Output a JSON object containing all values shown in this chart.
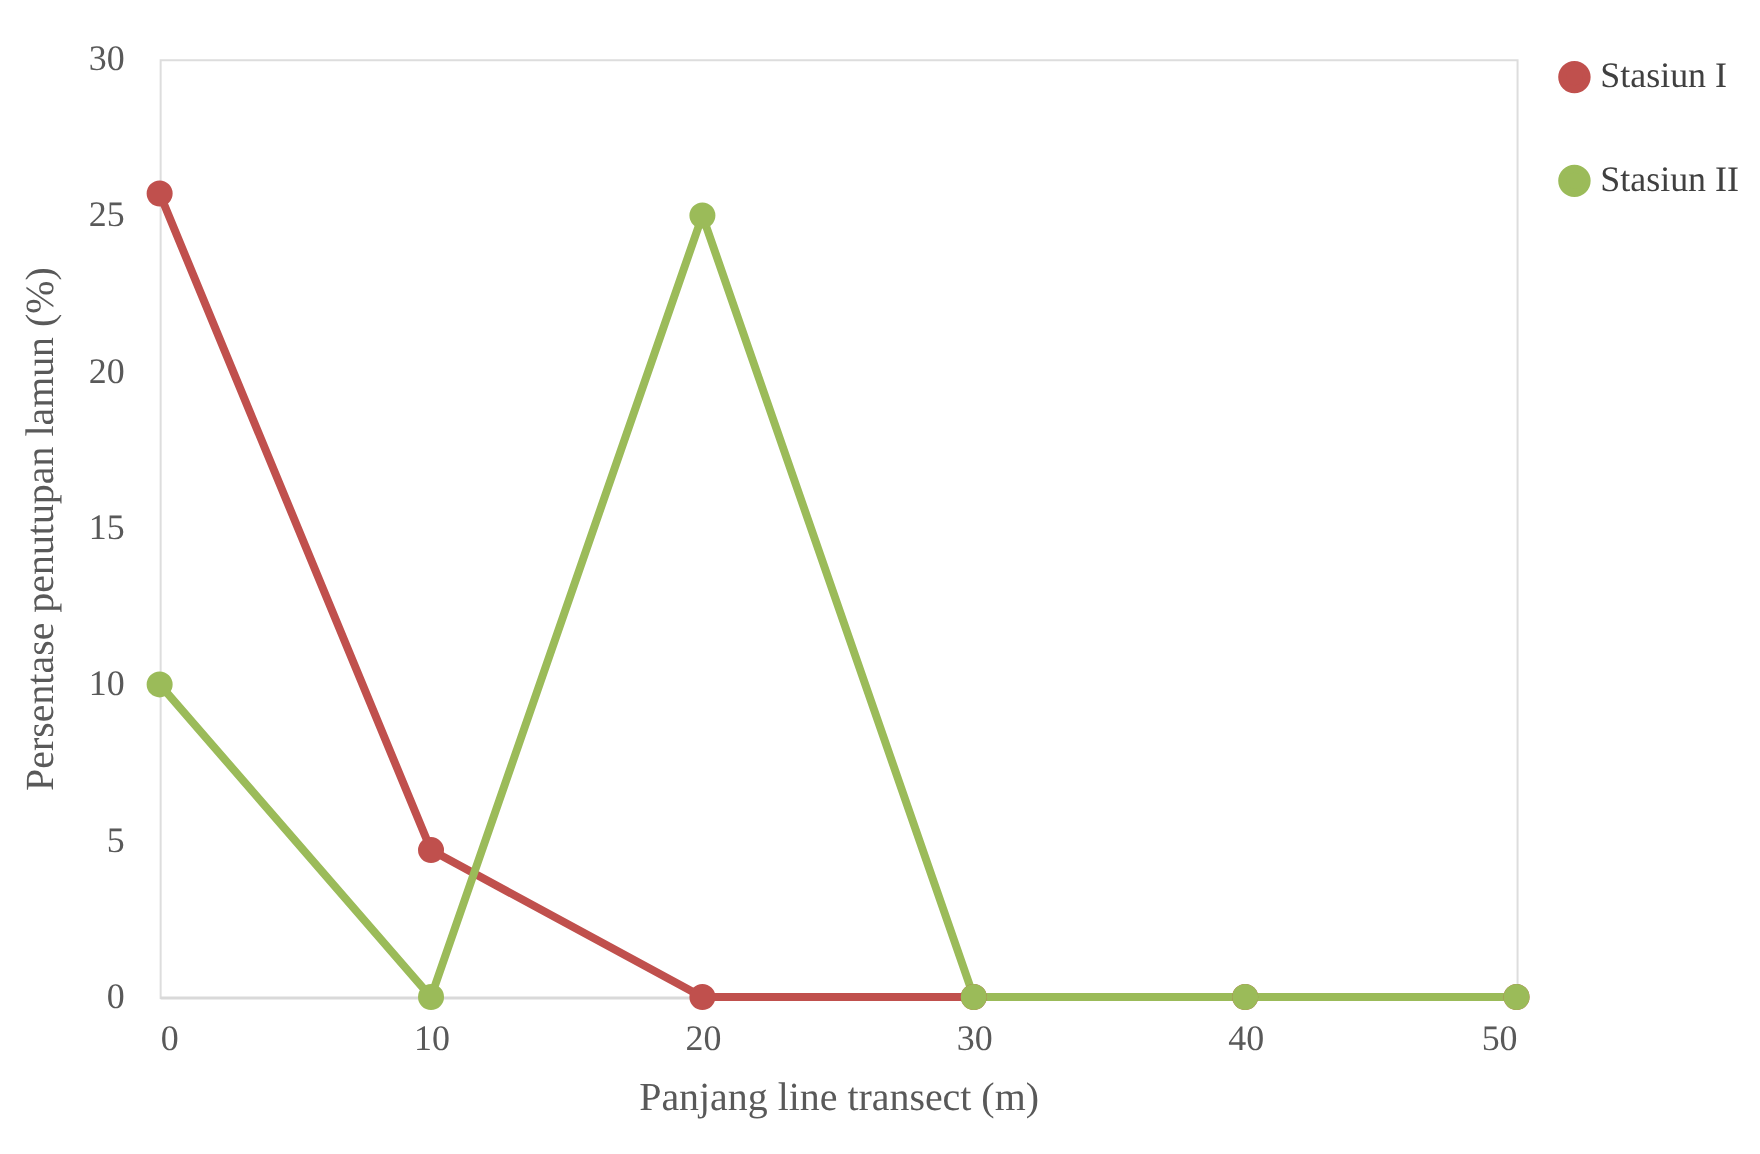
{
  "chart_data": {
    "type": "line",
    "xlabel": "Panjang line transect (m)",
    "ylabel": "Persentase penutupan lamun (%)",
    "x": [
      0,
      10,
      20,
      30,
      40,
      50
    ],
    "series": [
      {
        "name": "Stasiun I",
        "color": "#c0504d",
        "values": [
          25.7,
          4.7,
          0,
          0,
          0,
          0
        ]
      },
      {
        "name": "Stasiun II",
        "color": "#9bbb59",
        "values": [
          10,
          0,
          25,
          0,
          0,
          0
        ]
      }
    ],
    "xlim": [
      0,
      50
    ],
    "xticks": [
      0,
      10,
      20,
      30,
      40,
      50
    ],
    "ylim": [
      0,
      30
    ],
    "yticks": [
      0,
      5,
      10,
      15,
      20,
      25,
      30
    ],
    "grid": false,
    "legend": "right",
    "marker": "circle",
    "line_style": "solid"
  }
}
